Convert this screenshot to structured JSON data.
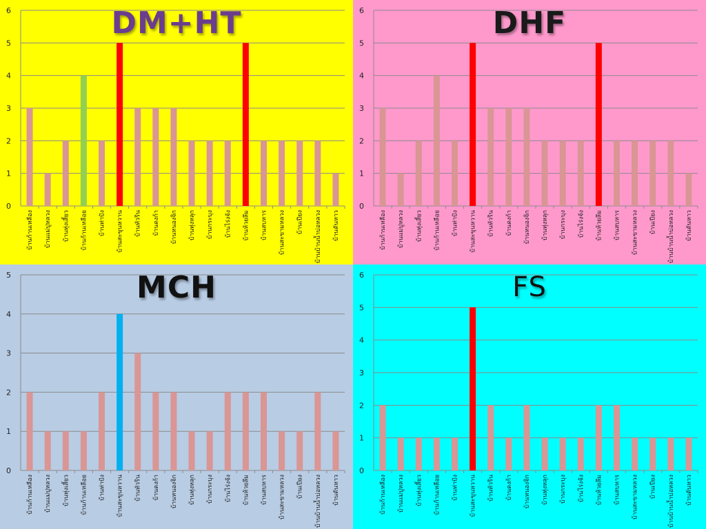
{
  "categories": [
    "บ้านก้านเหลือง",
    "บ้านแม่ปูหลวง",
    "บ้านทุ่งเสี้ยว",
    "บ้านก้านเหลือย",
    "บ้านท่าปัง",
    "บ้านสะขุนหวาน",
    "บ้านทัวริน",
    "บ้านดงก้า",
    "บ้านหนองจิก",
    "บ้านทุ่งหลุก",
    "บ้านกระบุง",
    "บ้านไร่งจัง",
    "บ้านห้วยลึม",
    "บ้านสบหาร",
    "บ้านสะขามหลวง",
    "บ้านเปียง",
    "บ้านบ้านน้ำบ่อหลวง",
    "บ้านตันหาว"
  ],
  "chart_data": [
    {
      "type": "bar",
      "title": "DM+HT",
      "background": "#ffff00",
      "base_color": "#d99694",
      "ylim": [
        0,
        6
      ],
      "categories_ref": "categories",
      "values": [
        3,
        1,
        2,
        4,
        2,
        5,
        3,
        3,
        3,
        2,
        2,
        2,
        5,
        2,
        2,
        2,
        2,
        1
      ],
      "highlights": {
        "3": "#92d050",
        "5": "#ff0000",
        "12": "#ff0000"
      }
    },
    {
      "type": "bar",
      "title": "DHF",
      "background": "#ff99cc",
      "base_color": "#d99694",
      "ylim": [
        0,
        6
      ],
      "categories_ref": "categories",
      "values": [
        3,
        1,
        2,
        4,
        2,
        5,
        3,
        3,
        3,
        2,
        2,
        2,
        5,
        2,
        2,
        2,
        2,
        1
      ],
      "highlights": {
        "5": "#ff0000",
        "12": "#ff0000"
      }
    },
    {
      "type": "bar",
      "title": "MCH",
      "background": "#b8cce4",
      "base_color": "#d99694",
      "ylim": [
        0,
        5
      ],
      "categories_ref": "categories",
      "values": [
        2,
        1,
        1,
        1,
        2,
        4,
        3,
        2,
        2,
        1,
        1,
        2,
        2,
        2,
        1,
        1,
        2,
        1
      ],
      "highlights": {
        "5": "#00b0f0"
      }
    },
    {
      "type": "bar",
      "title": "FS",
      "background": "#00ffff",
      "base_color": "#d99694",
      "ylim": [
        0,
        6
      ],
      "categories_ref": "categories",
      "values": [
        2,
        1,
        1,
        1,
        1,
        5,
        2,
        1,
        2,
        1,
        1,
        1,
        2,
        2,
        1,
        1,
        1,
        1
      ],
      "highlights": {
        "5": "#ff0000"
      }
    }
  ]
}
